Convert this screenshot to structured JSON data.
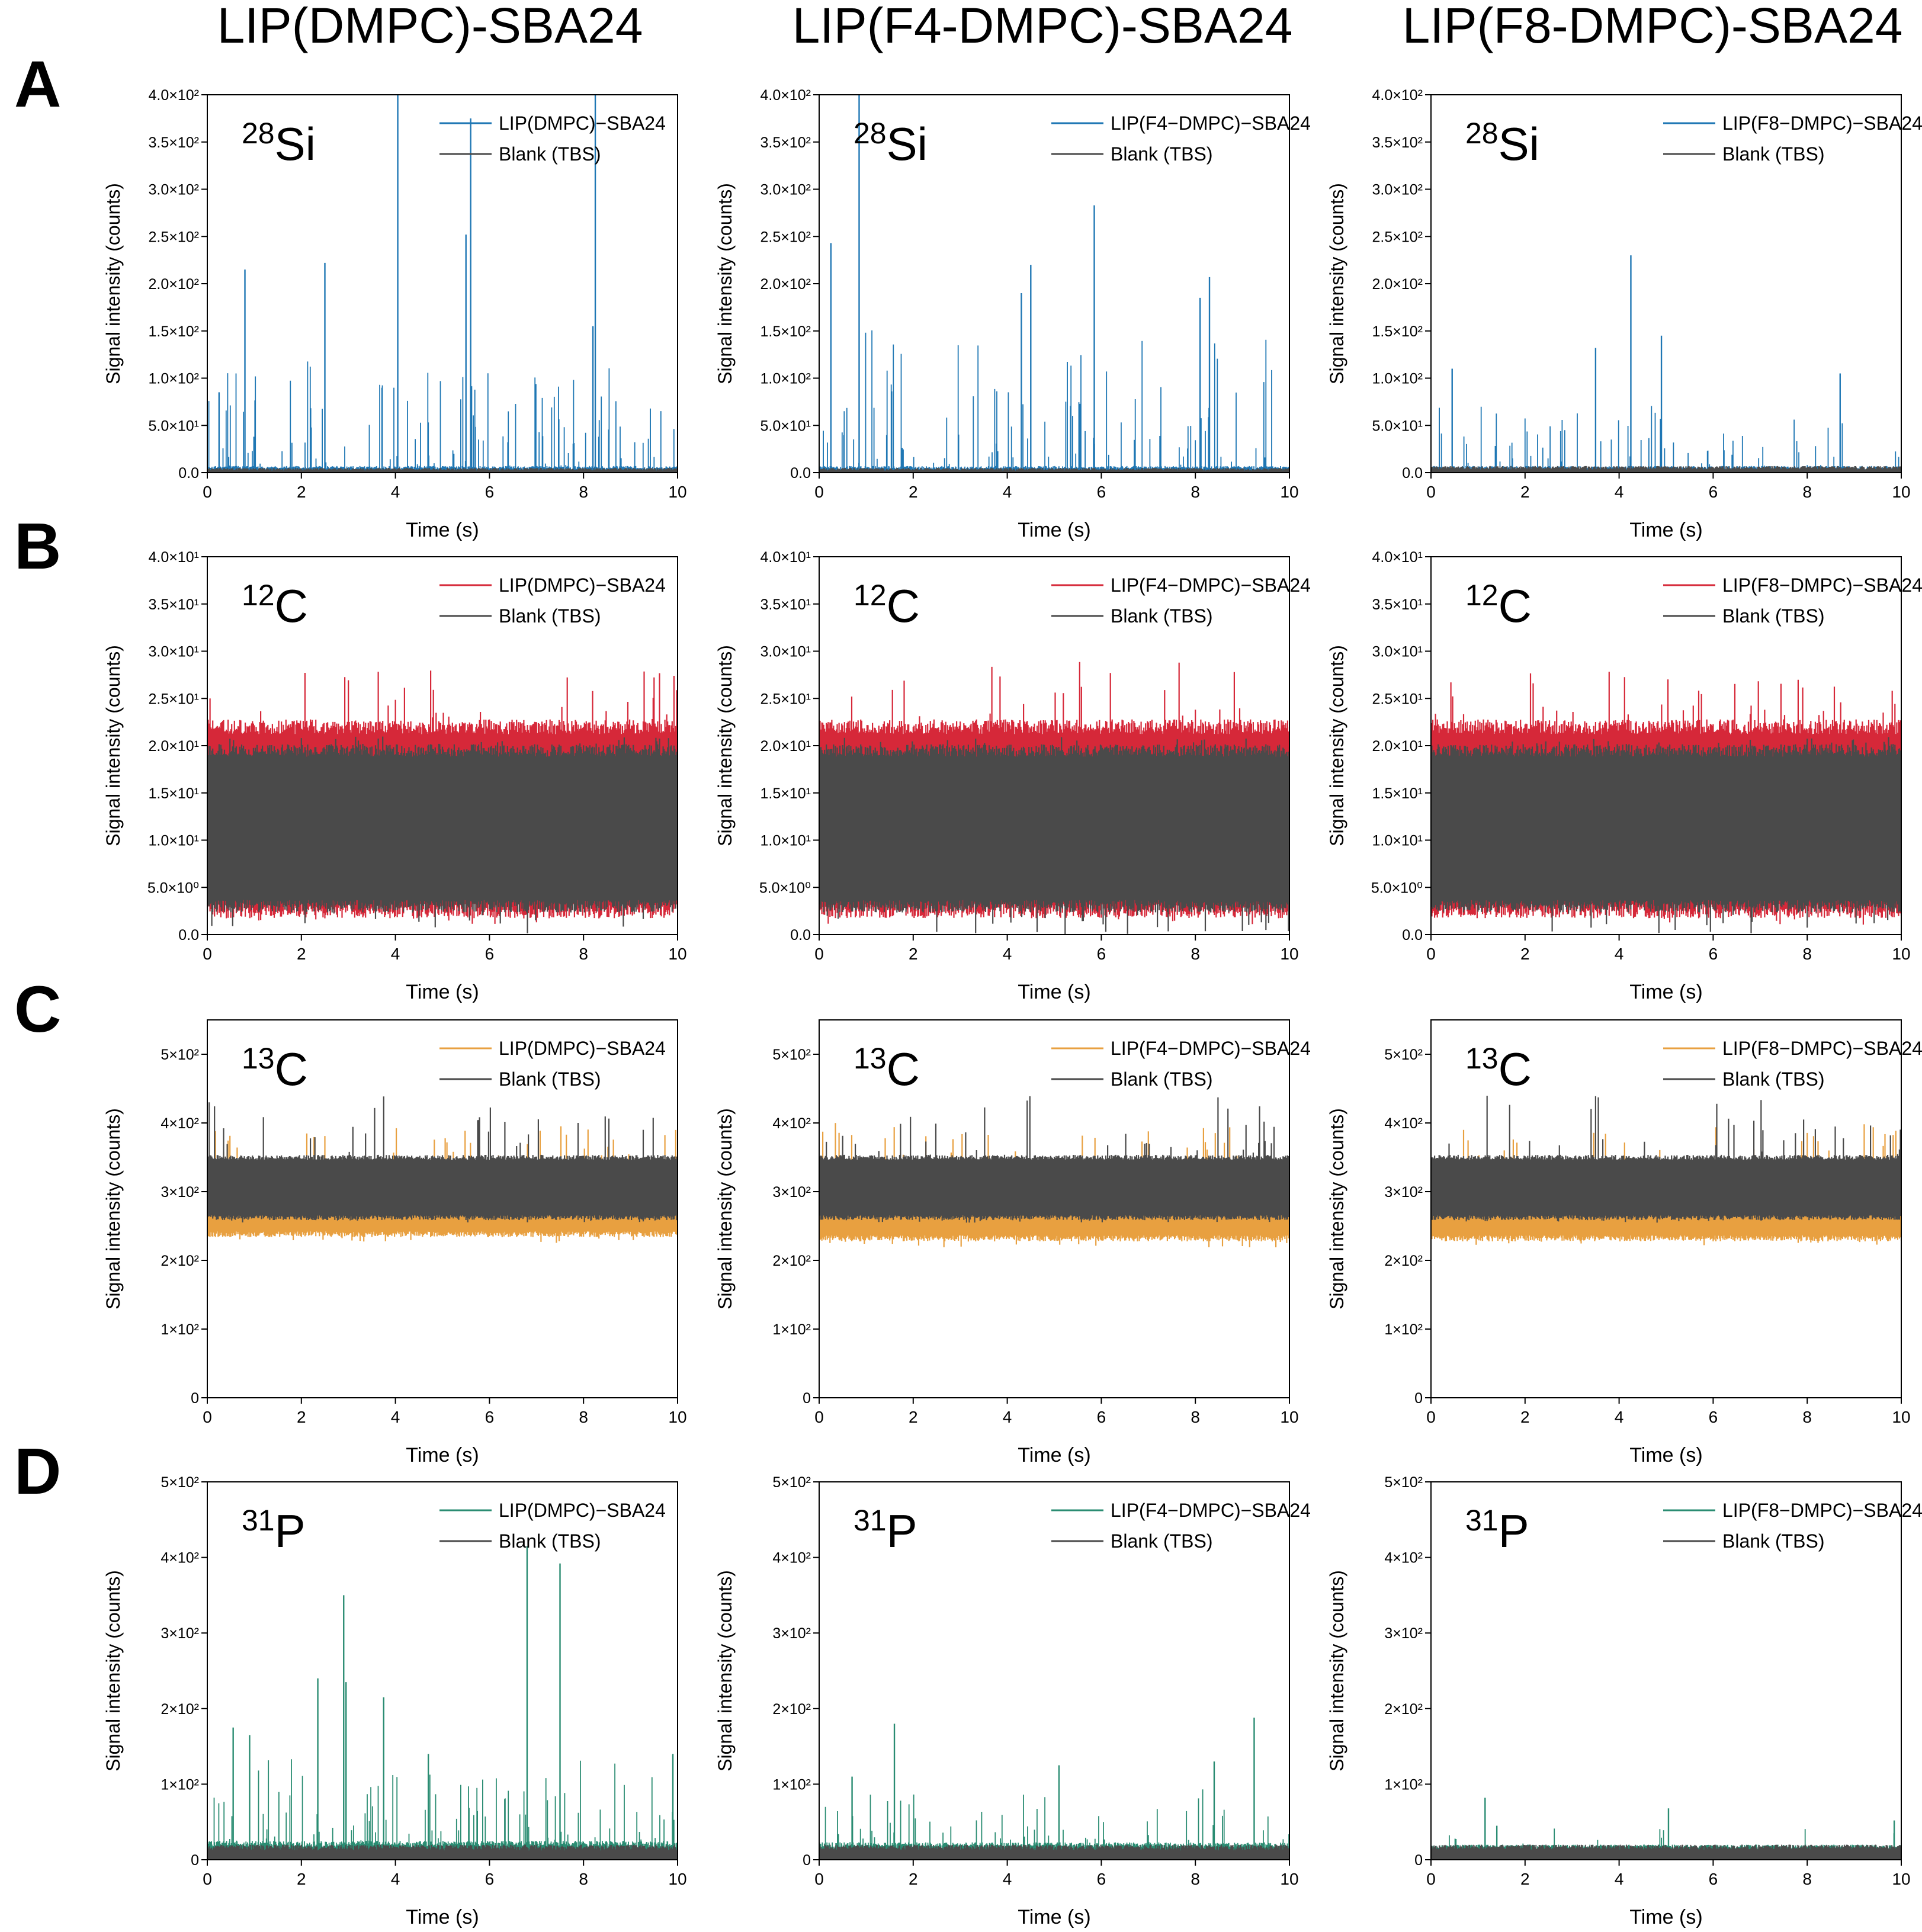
{
  "figure": {
    "column_titles": [
      "LIP(DMPC)-SBA24",
      "LIP(F4-DMPC)-SBA24",
      "LIP(F8-DMPC)-SBA24"
    ],
    "row_labels": [
      "A",
      "B",
      "C",
      "D"
    ]
  },
  "colors": {
    "blank": "#4a4a4a",
    "si": "#1f77b4",
    "c12": "#d62839",
    "c13": "#e8a040",
    "p": "#2a8c72",
    "axis": "#000000"
  },
  "common": {
    "xlabel": "Time (s)",
    "ylabel": "Signal intensity (counts)",
    "xlim": [
      0,
      10
    ],
    "xticks": [
      "0",
      "2",
      "4",
      "6",
      "8",
      "10"
    ],
    "blank_legend": "Blank (TBS)"
  },
  "chart_data": [
    {
      "type": "line",
      "row": "A",
      "col": 0,
      "isotope_mass": "28",
      "isotope_symbol": "Si",
      "ylim": [
        0,
        400
      ],
      "yticks": [
        0,
        50,
        100,
        150,
        200,
        250,
        300,
        350,
        400
      ],
      "ytick_labels": [
        "0.0",
        "5.0×10¹",
        "1.0×10²",
        "1.5×10²",
        "2.0×10²",
        "2.5×10²",
        "3.0×10²",
        "3.5×10²",
        "4.0×10²"
      ],
      "series": [
        {
          "name": "LIP(DMPC)−SBA24",
          "kind": "spike",
          "color_key": "si",
          "baseline": 3,
          "noise": 4,
          "spike_density": 0.12,
          "spike_max": 120,
          "peaks": [
            [
              0.8,
              215
            ],
            [
              2.5,
              222
            ],
            [
              4.05,
              400
            ],
            [
              5.5,
              252
            ],
            [
              5.6,
              375
            ],
            [
              8.25,
              400
            ],
            [
              8.2,
              155
            ],
            [
              0.25,
              85
            ]
          ]
        },
        {
          "name": "Blank (TBS)",
          "kind": "spike",
          "color_key": "blank",
          "baseline": 2,
          "noise": 3,
          "spike_density": 0,
          "spike_max": 0,
          "peaks": []
        }
      ]
    },
    {
      "type": "line",
      "row": "A",
      "col": 1,
      "isotope_mass": "28",
      "isotope_symbol": "Si",
      "ylim": [
        0,
        400
      ],
      "yticks": [
        0,
        50,
        100,
        150,
        200,
        250,
        300,
        350,
        400
      ],
      "ytick_labels": [
        "0.0",
        "5.0×10¹",
        "1.0×10²",
        "1.5×10²",
        "2.0×10²",
        "2.5×10²",
        "3.0×10²",
        "3.5×10²",
        "4.0×10²"
      ],
      "series": [
        {
          "name": "LIP(F4−DMPC)−SBA24",
          "kind": "spike",
          "color_key": "si",
          "baseline": 3,
          "noise": 4,
          "spike_density": 0.12,
          "spike_max": 150,
          "peaks": [
            [
              0.25,
              243
            ],
            [
              0.85,
              400
            ],
            [
              4.5,
              220
            ],
            [
              5.85,
              283
            ],
            [
              8.3,
              207
            ],
            [
              8.1,
              185
            ],
            [
              4.3,
              190
            ]
          ]
        },
        {
          "name": "Blank (TBS)",
          "kind": "spike",
          "color_key": "blank",
          "baseline": 2,
          "noise": 3,
          "spike_density": 0,
          "spike_max": 0,
          "peaks": []
        }
      ]
    },
    {
      "type": "line",
      "row": "A",
      "col": 2,
      "isotope_mass": "28",
      "isotope_symbol": "Si",
      "ylim": [
        0,
        400
      ],
      "yticks": [
        0,
        50,
        100,
        150,
        200,
        250,
        300,
        350,
        400
      ],
      "ytick_labels": [
        "0.0",
        "5.0×10¹",
        "1.0×10²",
        "1.5×10²",
        "2.0×10²",
        "2.5×10²",
        "3.0×10²",
        "3.5×10²",
        "4.0×10²"
      ],
      "series": [
        {
          "name": "LIP(F8−DMPC)−SBA24",
          "kind": "spike",
          "color_key": "si",
          "baseline": 3,
          "noise": 4,
          "spike_density": 0.06,
          "spike_max": 70,
          "peaks": [
            [
              4.25,
              230
            ],
            [
              3.5,
              132
            ],
            [
              4.9,
              145
            ],
            [
              8.7,
              105
            ],
            [
              0.45,
              110
            ]
          ]
        },
        {
          "name": "Blank (TBS)",
          "kind": "spike",
          "color_key": "blank",
          "baseline": 3,
          "noise": 4,
          "spike_density": 0,
          "spike_max": 0,
          "peaks": []
        }
      ]
    },
    {
      "type": "line",
      "row": "B",
      "col": 0,
      "isotope_mass": "12",
      "isotope_symbol": "C",
      "ylim": [
        0,
        40
      ],
      "yticks": [
        0,
        5,
        10,
        15,
        20,
        25,
        30,
        35,
        40
      ],
      "ytick_labels": [
        "0.0",
        "5.0×10⁰",
        "1.0×10¹",
        "1.5×10¹",
        "2.0×10¹",
        "2.5×10¹",
        "3.0×10¹",
        "3.5×10¹",
        "4.0×10¹"
      ],
      "series": [
        {
          "name": "LIP(DMPC)−SBA24",
          "kind": "band",
          "color_key": "c12",
          "low": 2.5,
          "high": 22,
          "low_ext": 1,
          "high_ext": 28
        },
        {
          "name": "Blank (TBS)",
          "kind": "band",
          "color_key": "blank",
          "low": 3,
          "high": 19.5,
          "low_ext": 0,
          "high_ext": 21
        }
      ]
    },
    {
      "type": "line",
      "row": "B",
      "col": 1,
      "isotope_mass": "12",
      "isotope_symbol": "C",
      "ylim": [
        0,
        40
      ],
      "yticks": [
        0,
        5,
        10,
        15,
        20,
        25,
        30,
        35,
        40
      ],
      "ytick_labels": [
        "0.0",
        "5.0×10⁰",
        "1.0×10¹",
        "1.5×10¹",
        "2.0×10¹",
        "2.5×10¹",
        "3.0×10¹",
        "3.5×10¹",
        "4.0×10¹"
      ],
      "series": [
        {
          "name": "LIP(F4−DMPC)−SBA24",
          "kind": "band",
          "color_key": "c12",
          "low": 2.5,
          "high": 22,
          "low_ext": 1,
          "high_ext": 29
        },
        {
          "name": "Blank (TBS)",
          "kind": "band",
          "color_key": "blank",
          "low": 3,
          "high": 19.5,
          "low_ext": 0,
          "high_ext": 21
        }
      ]
    },
    {
      "type": "line",
      "row": "B",
      "col": 2,
      "isotope_mass": "12",
      "isotope_symbol": "C",
      "ylim": [
        0,
        40
      ],
      "yticks": [
        0,
        5,
        10,
        15,
        20,
        25,
        30,
        35,
        40
      ],
      "ytick_labels": [
        "0.0",
        "5.0×10⁰",
        "1.0×10¹",
        "1.5×10¹",
        "2.0×10¹",
        "2.5×10¹",
        "3.0×10¹",
        "3.5×10¹",
        "4.0×10¹"
      ],
      "series": [
        {
          "name": "LIP(F8−DMPC)−SBA24",
          "kind": "band",
          "color_key": "c12",
          "low": 2.5,
          "high": 22,
          "low_ext": 1,
          "high_ext": 28
        },
        {
          "name": "Blank (TBS)",
          "kind": "band",
          "color_key": "blank",
          "low": 3,
          "high": 19.5,
          "low_ext": 0,
          "high_ext": 21
        }
      ]
    },
    {
      "type": "line",
      "row": "C",
      "col": 0,
      "isotope_mass": "13",
      "isotope_symbol": "C",
      "ylim": [
        0,
        550
      ],
      "yticks": [
        0,
        100,
        200,
        300,
        400,
        500
      ],
      "ytick_labels": [
        "0",
        "1×10²",
        "2×10²",
        "3×10²",
        "4×10²",
        "5×10²"
      ],
      "series": [
        {
          "name": "LIP(DMPC)−SBA24",
          "kind": "band",
          "color_key": "c13",
          "low": 238,
          "high": 340,
          "low_ext": 225,
          "high_ext": 400
        },
        {
          "name": "Blank (TBS)",
          "kind": "band",
          "color_key": "blank",
          "low": 262,
          "high": 350,
          "low_ext": 255,
          "high_ext": 440
        }
      ]
    },
    {
      "type": "line",
      "row": "C",
      "col": 1,
      "isotope_mass": "13",
      "isotope_symbol": "C",
      "ylim": [
        0,
        550
      ],
      "yticks": [
        0,
        100,
        200,
        300,
        400,
        500
      ],
      "ytick_labels": [
        "0",
        "1×10²",
        "2×10²",
        "3×10²",
        "4×10²",
        "5×10²"
      ],
      "series": [
        {
          "name": "LIP(F4−DMPC)−SBA24",
          "kind": "band",
          "color_key": "c13",
          "low": 232,
          "high": 340,
          "low_ext": 218,
          "high_ext": 400
        },
        {
          "name": "Blank (TBS)",
          "kind": "band",
          "color_key": "blank",
          "low": 262,
          "high": 350,
          "low_ext": 255,
          "high_ext": 440
        }
      ]
    },
    {
      "type": "line",
      "row": "C",
      "col": 2,
      "isotope_mass": "13",
      "isotope_symbol": "C",
      "ylim": [
        0,
        550
      ],
      "yticks": [
        0,
        100,
        200,
        300,
        400,
        500
      ],
      "ytick_labels": [
        "0",
        "1×10²",
        "2×10²",
        "3×10²",
        "4×10²",
        "5×10²"
      ],
      "series": [
        {
          "name": "LIP(F8−DMPC)−SBA24",
          "kind": "band",
          "color_key": "c13",
          "low": 232,
          "high": 340,
          "low_ext": 218,
          "high_ext": 400
        },
        {
          "name": "Blank (TBS)",
          "kind": "band",
          "color_key": "blank",
          "low": 262,
          "high": 350,
          "low_ext": 255,
          "high_ext": 440
        }
      ]
    },
    {
      "type": "line",
      "row": "D",
      "col": 0,
      "isotope_mass": "31",
      "isotope_symbol": "P",
      "ylim": [
        0,
        500
      ],
      "yticks": [
        0,
        100,
        200,
        300,
        400,
        500
      ],
      "ytick_labels": [
        "0",
        "1×10²",
        "2×10²",
        "3×10²",
        "4×10²",
        "5×10²"
      ],
      "series": [
        {
          "name": "LIP(DMPC)−SBA24",
          "kind": "spike",
          "color_key": "p",
          "baseline": 15,
          "noise": 10,
          "spike_density": 0.12,
          "spike_max": 120,
          "peaks": [
            [
              0.55,
              175
            ],
            [
              0.9,
              165
            ],
            [
              2.35,
              240
            ],
            [
              2.9,
              350
            ],
            [
              2.95,
              235
            ],
            [
              3.75,
              215
            ],
            [
              6.8,
              415
            ],
            [
              7.5,
              392
            ],
            [
              4.7,
              140
            ],
            [
              9.9,
              140
            ]
          ]
        },
        {
          "name": "Blank (TBS)",
          "kind": "spike",
          "color_key": "blank",
          "baseline": 12,
          "noise": 8,
          "spike_density": 0,
          "spike_max": 0,
          "peaks": []
        }
      ]
    },
    {
      "type": "line",
      "row": "D",
      "col": 1,
      "isotope_mass": "31",
      "isotope_symbol": "P",
      "ylim": [
        0,
        500
      ],
      "yticks": [
        0,
        100,
        200,
        300,
        400,
        500
      ],
      "ytick_labels": [
        "0",
        "1×10²",
        "2×10²",
        "3×10²",
        "4×10²",
        "5×10²"
      ],
      "series": [
        {
          "name": "LIP(F4−DMPC)−SBA24",
          "kind": "spike",
          "color_key": "p",
          "baseline": 15,
          "noise": 8,
          "spike_density": 0.08,
          "spike_max": 80,
          "peaks": [
            [
              1.6,
              180
            ],
            [
              9.25,
              188
            ],
            [
              5.1,
              125
            ],
            [
              8.4,
              130
            ],
            [
              0.7,
              110
            ]
          ]
        },
        {
          "name": "Blank (TBS)",
          "kind": "spike",
          "color_key": "blank",
          "baseline": 12,
          "noise": 8,
          "spike_density": 0,
          "spike_max": 0,
          "peaks": []
        }
      ]
    },
    {
      "type": "line",
      "row": "D",
      "col": 2,
      "isotope_mass": "31",
      "isotope_symbol": "P",
      "ylim": [
        0,
        500
      ],
      "yticks": [
        0,
        100,
        200,
        300,
        400,
        500
      ],
      "ytick_labels": [
        "0",
        "1×10²",
        "2×10²",
        "3×10²",
        "4×10²",
        "5×10²"
      ],
      "series": [
        {
          "name": "LIP(F8−DMPC)−SBA24",
          "kind": "spike",
          "color_key": "p",
          "baseline": 14,
          "noise": 6,
          "spike_density": 0.03,
          "spike_max": 30,
          "peaks": [
            [
              1.15,
              82
            ],
            [
              5.05,
              68
            ],
            [
              9.85,
              52
            ],
            [
              1.4,
              45
            ]
          ]
        },
        {
          "name": "Blank (TBS)",
          "kind": "spike",
          "color_key": "blank",
          "baseline": 13,
          "noise": 7,
          "spike_density": 0,
          "spike_max": 0,
          "peaks": []
        }
      ]
    }
  ]
}
